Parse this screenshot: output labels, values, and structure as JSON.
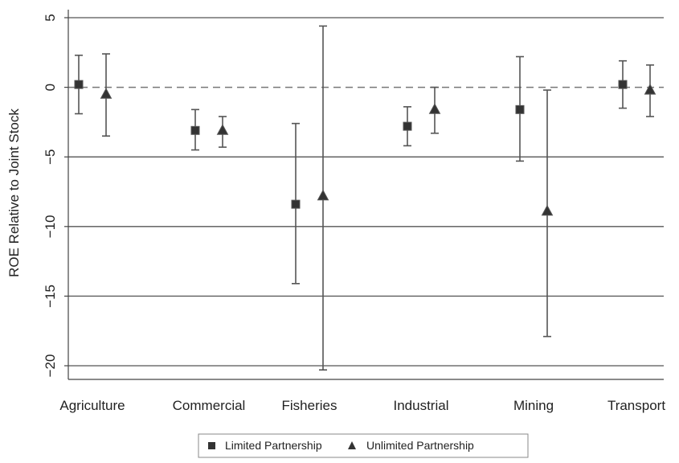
{
  "chart_data": {
    "type": "scatter",
    "title": "",
    "xlabel": "",
    "ylabel": "ROE Relative to Joint Stock",
    "ylim": [
      -21,
      5.5
    ],
    "yticks": [
      5,
      0,
      -5,
      -10,
      -15,
      -20
    ],
    "categories": [
      "Agriculture",
      "Commercial",
      "Fisheries",
      "Industrial",
      "Mining",
      "Transport"
    ],
    "reference_line": {
      "y": 0,
      "style": "dashed"
    },
    "grid": true,
    "legend": "bottom",
    "series": [
      {
        "name": "Limited Partnership",
        "marker": "square",
        "values": [
          0.2,
          -3.1,
          -8.4,
          -2.8,
          -1.6,
          0.2
        ],
        "lower": [
          -1.9,
          -4.5,
          -14.1,
          -4.2,
          -5.3,
          -1.5
        ],
        "upper": [
          2.3,
          -1.6,
          -2.6,
          -1.4,
          2.2,
          1.9
        ]
      },
      {
        "name": "Unlimited Partnership",
        "marker": "triangle",
        "values": [
          -0.5,
          -3.1,
          -7.8,
          -1.6,
          -8.9,
          -0.2
        ],
        "lower": [
          -3.5,
          -4.3,
          -20.3,
          -3.3,
          -17.9,
          -2.1
        ],
        "upper": [
          2.4,
          -2.1,
          4.4,
          0.0,
          -0.2,
          1.6
        ]
      }
    ]
  },
  "colors": {
    "marker": "#333333",
    "errorbar": "#555555",
    "grid": "#555555"
  }
}
